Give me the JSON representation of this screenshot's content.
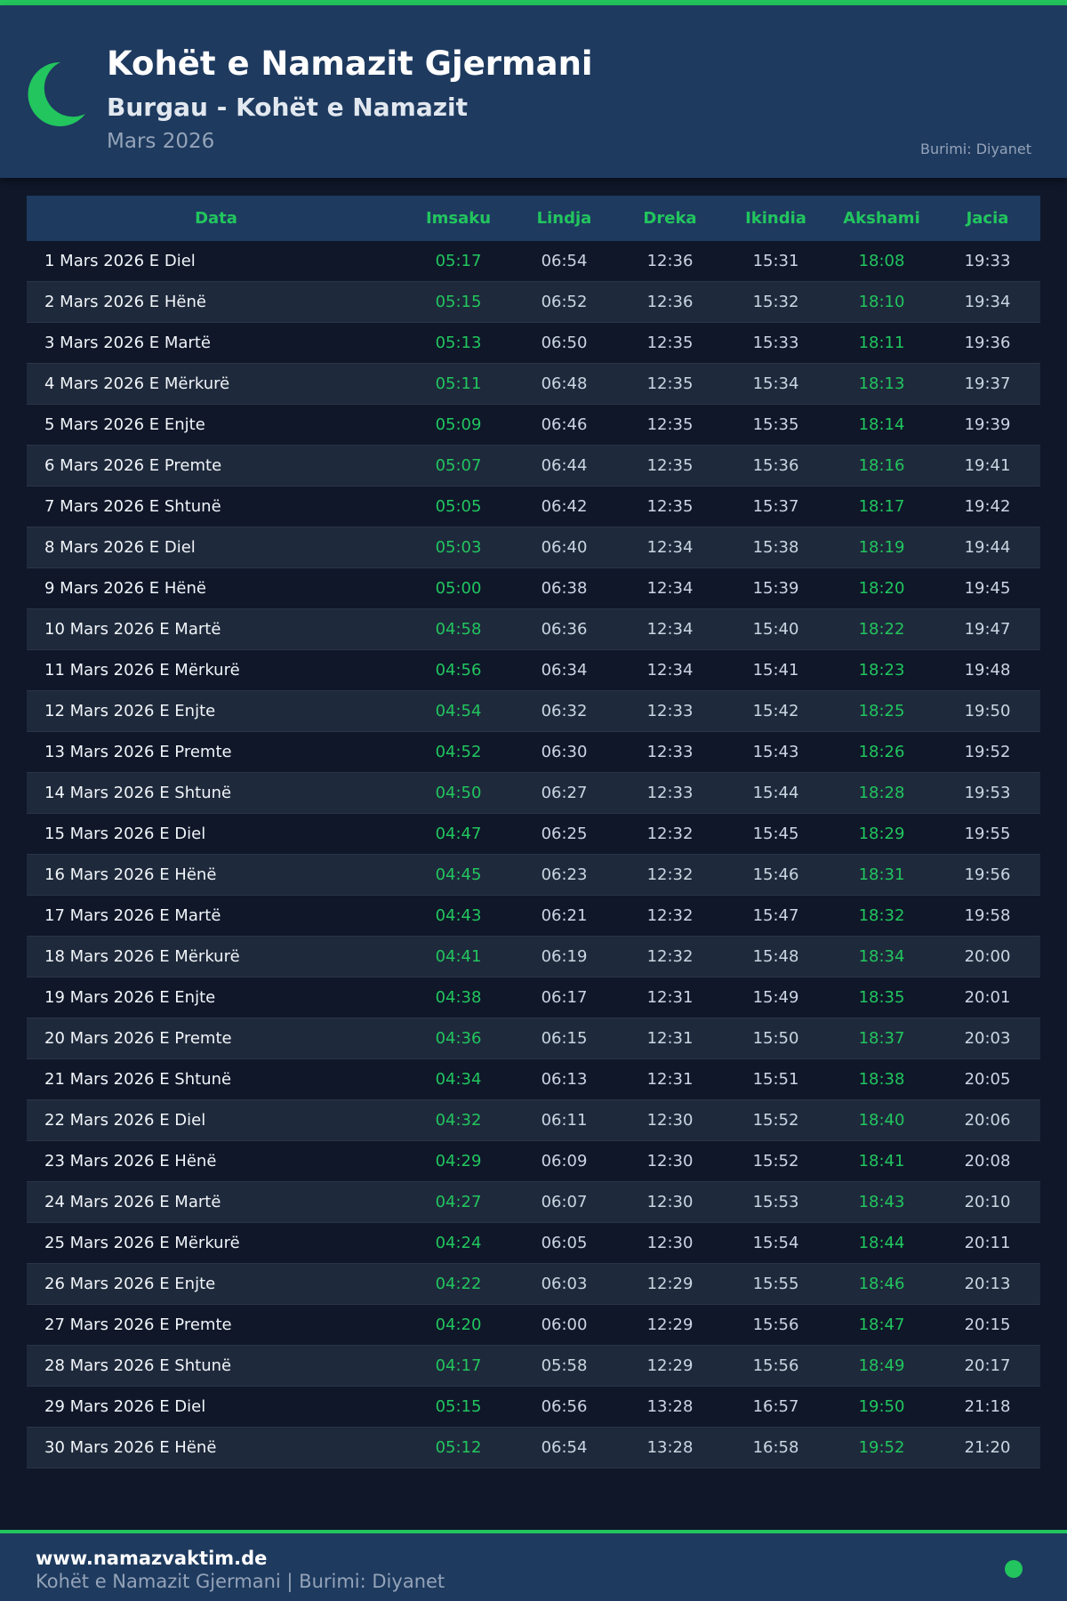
{
  "header": {
    "title": "Kohët e Namazit Gjermani",
    "subtitle": "Burgau - Kohët e Namazit",
    "month": "Mars 2026",
    "source": "Burimi: Diyanet",
    "icon": "crescent-moon-icon"
  },
  "colors": {
    "accent": "#22c55e",
    "header_bg": "#1e3a5f",
    "page_bg": "#0f1729"
  },
  "table": {
    "columns": [
      "Data",
      "Imsaku",
      "Lindja",
      "Dreka",
      "Ikindia",
      "Akshami",
      "Jacia"
    ],
    "rows": [
      [
        "1 Mars 2026 E Diel",
        "05:17",
        "06:54",
        "12:36",
        "15:31",
        "18:08",
        "19:33"
      ],
      [
        "2 Mars 2026 E Hënë",
        "05:15",
        "06:52",
        "12:36",
        "15:32",
        "18:10",
        "19:34"
      ],
      [
        "3 Mars 2026 E Martë",
        "05:13",
        "06:50",
        "12:35",
        "15:33",
        "18:11",
        "19:36"
      ],
      [
        "4 Mars 2026 E Mërkurë",
        "05:11",
        "06:48",
        "12:35",
        "15:34",
        "18:13",
        "19:37"
      ],
      [
        "5 Mars 2026 E Enjte",
        "05:09",
        "06:46",
        "12:35",
        "15:35",
        "18:14",
        "19:39"
      ],
      [
        "6 Mars 2026 E Premte",
        "05:07",
        "06:44",
        "12:35",
        "15:36",
        "18:16",
        "19:41"
      ],
      [
        "7 Mars 2026 E Shtunë",
        "05:05",
        "06:42",
        "12:35",
        "15:37",
        "18:17",
        "19:42"
      ],
      [
        "8 Mars 2026 E Diel",
        "05:03",
        "06:40",
        "12:34",
        "15:38",
        "18:19",
        "19:44"
      ],
      [
        "9 Mars 2026 E Hënë",
        "05:00",
        "06:38",
        "12:34",
        "15:39",
        "18:20",
        "19:45"
      ],
      [
        "10 Mars 2026 E Martë",
        "04:58",
        "06:36",
        "12:34",
        "15:40",
        "18:22",
        "19:47"
      ],
      [
        "11 Mars 2026 E Mërkurë",
        "04:56",
        "06:34",
        "12:34",
        "15:41",
        "18:23",
        "19:48"
      ],
      [
        "12 Mars 2026 E Enjte",
        "04:54",
        "06:32",
        "12:33",
        "15:42",
        "18:25",
        "19:50"
      ],
      [
        "13 Mars 2026 E Premte",
        "04:52",
        "06:30",
        "12:33",
        "15:43",
        "18:26",
        "19:52"
      ],
      [
        "14 Mars 2026 E Shtunë",
        "04:50",
        "06:27",
        "12:33",
        "15:44",
        "18:28",
        "19:53"
      ],
      [
        "15 Mars 2026 E Diel",
        "04:47",
        "06:25",
        "12:32",
        "15:45",
        "18:29",
        "19:55"
      ],
      [
        "16 Mars 2026 E Hënë",
        "04:45",
        "06:23",
        "12:32",
        "15:46",
        "18:31",
        "19:56"
      ],
      [
        "17 Mars 2026 E Martë",
        "04:43",
        "06:21",
        "12:32",
        "15:47",
        "18:32",
        "19:58"
      ],
      [
        "18 Mars 2026 E Mërkurë",
        "04:41",
        "06:19",
        "12:32",
        "15:48",
        "18:34",
        "20:00"
      ],
      [
        "19 Mars 2026 E Enjte",
        "04:38",
        "06:17",
        "12:31",
        "15:49",
        "18:35",
        "20:01"
      ],
      [
        "20 Mars 2026 E Premte",
        "04:36",
        "06:15",
        "12:31",
        "15:50",
        "18:37",
        "20:03"
      ],
      [
        "21 Mars 2026 E Shtunë",
        "04:34",
        "06:13",
        "12:31",
        "15:51",
        "18:38",
        "20:05"
      ],
      [
        "22 Mars 2026 E Diel",
        "04:32",
        "06:11",
        "12:30",
        "15:52",
        "18:40",
        "20:06"
      ],
      [
        "23 Mars 2026 E Hënë",
        "04:29",
        "06:09",
        "12:30",
        "15:52",
        "18:41",
        "20:08"
      ],
      [
        "24 Mars 2026 E Martë",
        "04:27",
        "06:07",
        "12:30",
        "15:53",
        "18:43",
        "20:10"
      ],
      [
        "25 Mars 2026 E Mërkurë",
        "04:24",
        "06:05",
        "12:30",
        "15:54",
        "18:44",
        "20:11"
      ],
      [
        "26 Mars 2026 E Enjte",
        "04:22",
        "06:03",
        "12:29",
        "15:55",
        "18:46",
        "20:13"
      ],
      [
        "27 Mars 2026 E Premte",
        "04:20",
        "06:00",
        "12:29",
        "15:56",
        "18:47",
        "20:15"
      ],
      [
        "28 Mars 2026 E Shtunë",
        "04:17",
        "05:58",
        "12:29",
        "15:56",
        "18:49",
        "20:17"
      ],
      [
        "29 Mars 2026 E Diel",
        "05:15",
        "06:56",
        "13:28",
        "16:57",
        "19:50",
        "21:18"
      ],
      [
        "30 Mars 2026 E Hënë",
        "05:12",
        "06:54",
        "13:28",
        "16:58",
        "19:52",
        "21:20"
      ]
    ]
  },
  "footer": {
    "site": "www.namazvaktim.de",
    "subtitle": "Kohët e Namazit Gjermani | Burimi: Diyanet"
  }
}
